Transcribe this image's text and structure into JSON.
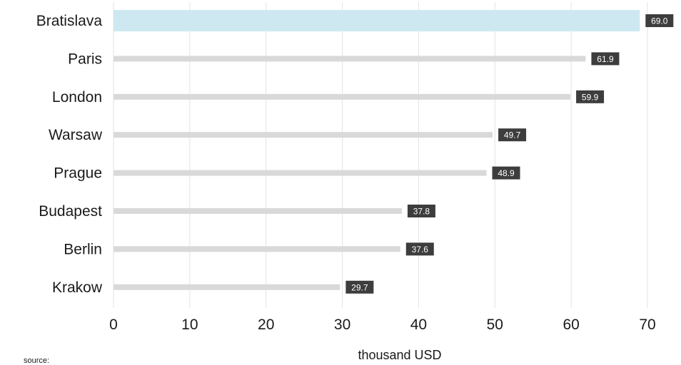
{
  "chart_data": {
    "type": "bar",
    "orientation": "horizontal",
    "categories": [
      "Bratislava",
      "Paris",
      "London",
      "Warsaw",
      "Prague",
      "Budapest",
      "Berlin",
      "Krakow"
    ],
    "values": [
      69.0,
      61.9,
      59.9,
      49.7,
      48.9,
      37.8,
      37.6,
      29.7
    ],
    "value_labels": [
      "69.0",
      "61.9",
      "59.9",
      "49.7",
      "48.9",
      "37.8",
      "37.6",
      "29.7"
    ],
    "highlighted_category": "Bratislava",
    "xlabel": "thousand USD",
    "ylabel": "",
    "xlim": [
      0,
      70
    ],
    "xticks": [
      0,
      10,
      20,
      30,
      40,
      50,
      60,
      70
    ],
    "grid": "vertical",
    "legend": "none",
    "colors": {
      "bar": "#d9d9d9",
      "highlight": "#cde8f1",
      "value_box": "#3d3d3d",
      "grid": "#e3e3e3"
    }
  },
  "footer": {
    "source_label": "source:"
  }
}
